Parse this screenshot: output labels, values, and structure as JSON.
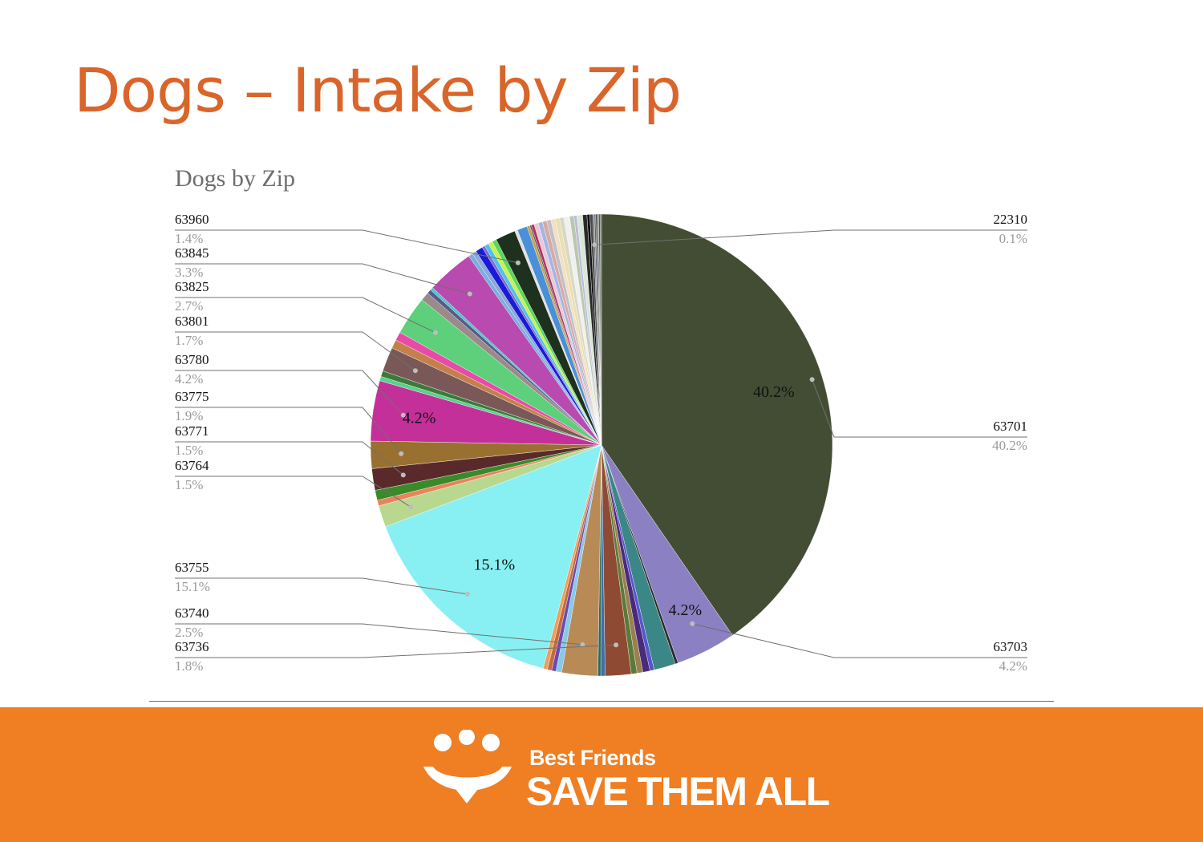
{
  "slide": {
    "title": "Dogs – Intake by Zip"
  },
  "brand": {
    "line1": "Best Friends",
    "line2": "SAVE THEM ALL"
  },
  "colors": {
    "title": "#d9652a",
    "footer": "#f07e22",
    "divider": "#4a72c4"
  },
  "chart_data": {
    "type": "pie",
    "title": "Dogs by Zip",
    "legend": "none",
    "slices": [
      {
        "label": "63701",
        "value": 40.2,
        "color": "#434d34"
      },
      {
        "label": "63703",
        "value": 4.2,
        "color": "#8b80c2"
      },
      {
        "label": "",
        "value": 0.2,
        "color": "#2a2a2a"
      },
      {
        "label": "",
        "value": 1.5,
        "color": "#3b8686"
      },
      {
        "label": "",
        "value": 0.3,
        "color": "#5555cc"
      },
      {
        "label": "",
        "value": 0.5,
        "color": "#4a2a7a"
      },
      {
        "label": "",
        "value": 0.4,
        "color": "#9a8050"
      },
      {
        "label": "",
        "value": 0.4,
        "color": "#5a7a3a"
      },
      {
        "label": "63736",
        "value": 1.8,
        "color": "#8e4a33"
      },
      {
        "label": "",
        "value": 0.3,
        "color": "#3d6ea8"
      },
      {
        "label": "",
        "value": 0.2,
        "color": "#2d6a5a"
      },
      {
        "label": "63740",
        "value": 2.5,
        "color": "#b88a55"
      },
      {
        "label": "",
        "value": 0.4,
        "color": "#88c8e8"
      },
      {
        "label": "",
        "value": 0.3,
        "color": "#6a4ab0"
      },
      {
        "label": "",
        "value": 0.3,
        "color": "#c86a3a"
      },
      {
        "label": "",
        "value": 0.3,
        "color": "#e8a060"
      },
      {
        "label": "63755",
        "value": 15.1,
        "color": "#88f0f2"
      },
      {
        "label": "63764",
        "value": 1.5,
        "color": "#b8d890"
      },
      {
        "label": "",
        "value": 0.4,
        "color": "#e8845a"
      },
      {
        "label": "",
        "value": 0.7,
        "color": "#3a8a2a"
      },
      {
        "label": "63771",
        "value": 1.5,
        "color": "#5a2a2a"
      },
      {
        "label": "63775",
        "value": 1.9,
        "color": "#9a7030"
      },
      {
        "label": "63780",
        "value": 4.2,
        "color": "#c4309a"
      },
      {
        "label": "",
        "value": 0.3,
        "color": "#5ad08a"
      },
      {
        "label": "",
        "value": 0.4,
        "color": "#3a7a3a"
      },
      {
        "label": "63801",
        "value": 1.7,
        "color": "#7a5858"
      },
      {
        "label": "",
        "value": 0.6,
        "color": "#c4804a"
      },
      {
        "label": "",
        "value": 0.6,
        "color": "#e84aa8"
      },
      {
        "label": "63825",
        "value": 2.7,
        "color": "#5ecf7a"
      },
      {
        "label": "",
        "value": 0.6,
        "color": "#9a8a8a"
      },
      {
        "label": "",
        "value": 0.3,
        "color": "#5a5a8a"
      },
      {
        "label": "",
        "value": 0.2,
        "color": "#48c8c8"
      },
      {
        "label": "63845",
        "value": 3.3,
        "color": "#b84ab0"
      },
      {
        "label": "",
        "value": 0.3,
        "color": "#7aaee0"
      },
      {
        "label": "",
        "value": 0.3,
        "color": "#8aa8d8"
      },
      {
        "label": "",
        "value": 0.5,
        "color": "#1a1ad8"
      },
      {
        "label": "",
        "value": 0.2,
        "color": "#7a6ad0"
      },
      {
        "label": "",
        "value": 0.3,
        "color": "#50c0e8"
      },
      {
        "label": "",
        "value": 0.3,
        "color": "#c8f050"
      },
      {
        "label": "",
        "value": 0.3,
        "color": "#58d858"
      },
      {
        "label": "63960",
        "value": 1.4,
        "color": "#1e301e"
      },
      {
        "label": "",
        "value": 0.2,
        "color": "#e0e0e0"
      },
      {
        "label": "",
        "value": 0.7,
        "color": "#4a90d8"
      },
      {
        "label": "",
        "value": 0.2,
        "color": "#c8a050"
      },
      {
        "label": "",
        "value": 0.1,
        "color": "#505050"
      },
      {
        "label": "",
        "value": 0.2,
        "color": "#b03060"
      },
      {
        "label": "",
        "value": 0.3,
        "color": "#e8c8d8"
      },
      {
        "label": "",
        "value": 0.3,
        "color": "#a0b8e0"
      },
      {
        "label": "",
        "value": 0.3,
        "color": "#d8a8a8"
      },
      {
        "label": "",
        "value": 0.3,
        "color": "#c0c0c0"
      },
      {
        "label": "",
        "value": 0.3,
        "color": "#f0e0c8"
      },
      {
        "label": "",
        "value": 0.3,
        "color": "#e8e0b0"
      },
      {
        "label": "",
        "value": 0.3,
        "color": "#d8d8c8"
      },
      {
        "label": "",
        "value": 0.4,
        "color": "#f0f0f0"
      },
      {
        "label": "",
        "value": 0.3,
        "color": "#b8c8b0"
      },
      {
        "label": "",
        "value": 0.2,
        "color": "#c0b8d8"
      },
      {
        "label": "",
        "value": 0.4,
        "color": "#d8e8d8"
      },
      {
        "label": "",
        "value": 0.3,
        "color": "#2a2a2a"
      },
      {
        "label": "",
        "value": 0.2,
        "color": "#101010"
      },
      {
        "label": "",
        "value": 0.2,
        "color": "#4a4a4a"
      },
      {
        "label": "22310",
        "value": 0.1,
        "color": "#707070"
      },
      {
        "label": "",
        "value": 0.1,
        "color": "#5a6a7a"
      },
      {
        "label": "",
        "value": 0.1,
        "color": "#3a3a3a"
      },
      {
        "label": "",
        "value": 0.1,
        "color": "#888888"
      },
      {
        "label": "",
        "value": 0.1,
        "color": "#4a5a4a"
      },
      {
        "label": "",
        "value": 0.1,
        "color": "#606860"
      }
    ],
    "slice_labels": [
      {
        "slice": "63701",
        "text": "40.2%"
      },
      {
        "slice": "63755",
        "text": "15.1%"
      },
      {
        "slice": "63780",
        "text": "4.2%"
      },
      {
        "slice": "63703",
        "text": "4.2%"
      }
    ],
    "callouts": [
      {
        "slice": "63960",
        "name": "63960",
        "pct": "1.4%",
        "side": "left"
      },
      {
        "slice": "63845",
        "name": "63845",
        "pct": "3.3%",
        "side": "left"
      },
      {
        "slice": "63825",
        "name": "63825",
        "pct": "2.7%",
        "side": "left"
      },
      {
        "slice": "63801",
        "name": "63801",
        "pct": "1.7%",
        "side": "left"
      },
      {
        "slice": "63780",
        "name": "63780",
        "pct": "4.2%",
        "side": "left"
      },
      {
        "slice": "63775",
        "name": "63775",
        "pct": "1.9%",
        "side": "left"
      },
      {
        "slice": "63771",
        "name": "63771",
        "pct": "1.5%",
        "side": "left"
      },
      {
        "slice": "63764",
        "name": "63764",
        "pct": "1.5%",
        "side": "left"
      },
      {
        "slice": "63755",
        "name": "63755",
        "pct": "15.1%",
        "side": "left"
      },
      {
        "slice": "63740",
        "name": "63740",
        "pct": "2.5%",
        "side": "left"
      },
      {
        "slice": "63736",
        "name": "63736",
        "pct": "1.8%",
        "side": "left"
      },
      {
        "slice": "22310",
        "name": "22310",
        "pct": "0.1%",
        "side": "right"
      },
      {
        "slice": "63701",
        "name": "63701",
        "pct": "40.2%",
        "side": "right"
      },
      {
        "slice": "63703",
        "name": "63703",
        "pct": "4.2%",
        "side": "right"
      }
    ]
  }
}
